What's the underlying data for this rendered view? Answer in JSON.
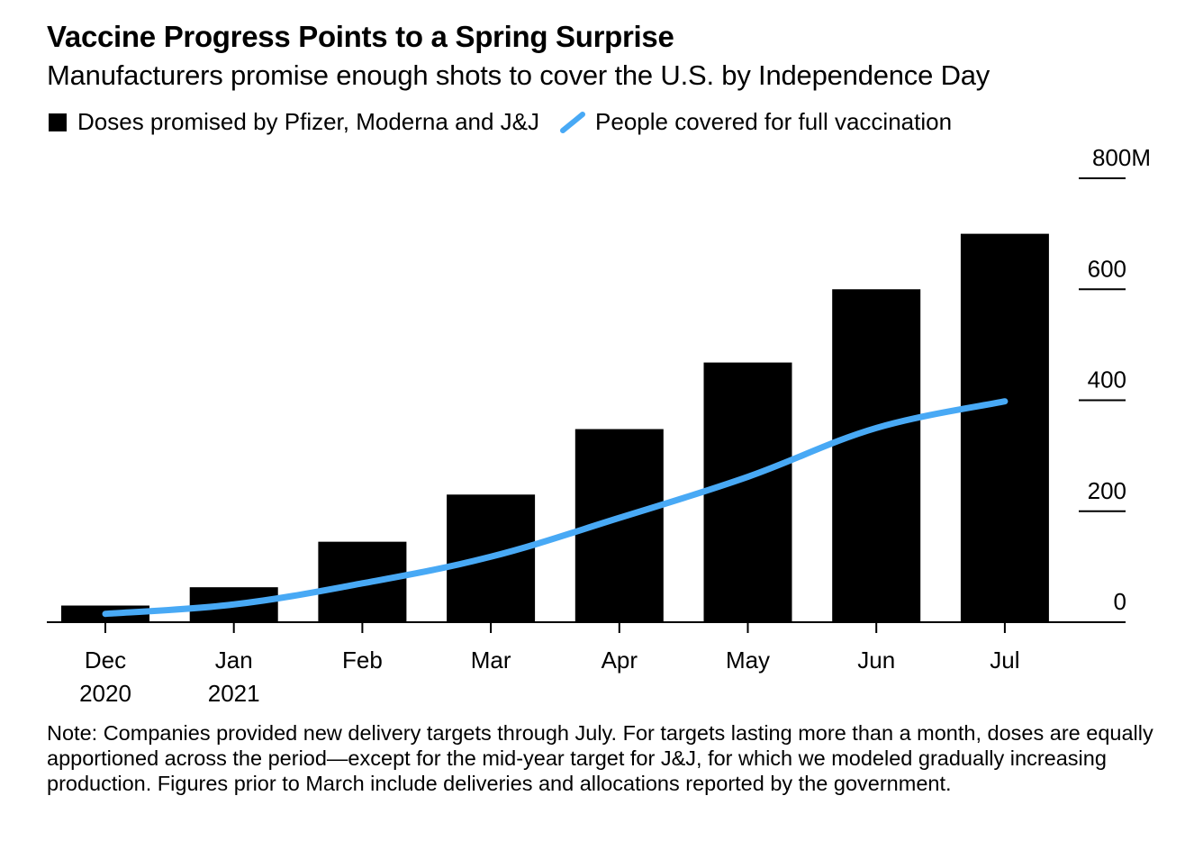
{
  "chart_data": {
    "type": "bar",
    "title": "Vaccine Progress Points to a Spring Surprise",
    "subtitle": "Manufacturers promise enough shots to cover the U.S. by Independence Day",
    "categories": [
      [
        "Dec",
        "2020"
      ],
      [
        "Jan",
        "2021"
      ],
      [
        "Feb"
      ],
      [
        "Mar"
      ],
      [
        "Apr"
      ],
      [
        "May"
      ],
      [
        "Jun"
      ],
      [
        "Jul"
      ]
    ],
    "series": [
      {
        "name": "Doses promised by Pfizer, Moderna and J&J",
        "type": "bar",
        "color": "#000000",
        "values": [
          30,
          63,
          145,
          230,
          348,
          468,
          600,
          700
        ]
      },
      {
        "name": "People covered for full vaccination",
        "type": "line",
        "color": "#48a9f5",
        "values": [
          15,
          32,
          70,
          118,
          188,
          262,
          350,
          398
        ]
      }
    ],
    "y_axis": {
      "range": [
        0,
        800
      ],
      "ticks": [
        0,
        200,
        400,
        600,
        800
      ],
      "tick_labels": [
        "0",
        "200",
        "400",
        "600",
        "800M"
      ],
      "position": "right"
    },
    "note": "Note: Companies provided new delivery targets through July. For targets lasting more than a month, doses are equally apportioned across the period—except for the mid-year target for J&J, for which we modeled gradually increasing production. Figures prior to March include deliveries and allocations reported by the government."
  }
}
